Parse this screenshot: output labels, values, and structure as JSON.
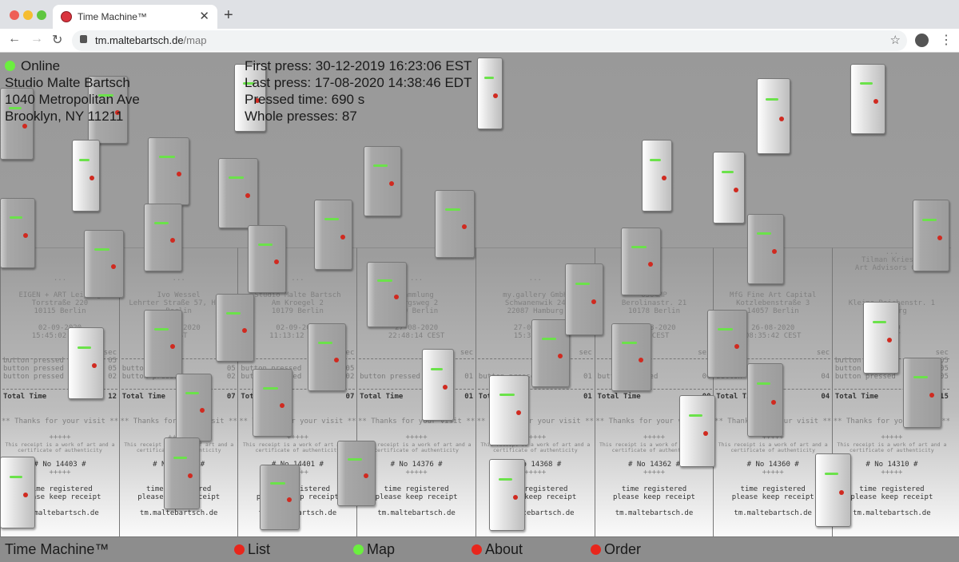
{
  "browser": {
    "tab_title": "Time Machine™",
    "url_host": "tm.maltebartsch.de",
    "url_path": "/map",
    "new_tab": "+",
    "close": "✕"
  },
  "status": {
    "label": "Online",
    "color": "#6bef3f",
    "studio": "Studio Malte Bartsch",
    "street": "1040 Metropolitan Ave",
    "city": "Brooklyn, NY 11211"
  },
  "stats": {
    "first_press": "First press: 30-12-2019 16:23:06 EST",
    "last_press": "Last press: 17-08-2020 14:38:46 EDT",
    "pressed_time": "Pressed time: 690 s",
    "whole_presses": "Whole presses: 87"
  },
  "receipt_common": {
    "ellipsis": "...",
    "sec": "sec",
    "row_label": "button pressed",
    "total_label": "Total Time",
    "thanks": "** Thanks for your visit **",
    "plus": "+++++",
    "art_line1": "This receipt is a work of art and a",
    "art_line2": "certificate of authenticity",
    "registered": "time registered",
    "keep": "please keep receipt",
    "site": "tm.maltebartsch.de"
  },
  "receipts": [
    {
      "name": "EIGEN + ART Leipzig",
      "addr": "Torstraße 220",
      "city": "10115 Berlin",
      "date": "02-09-2020",
      "time": "15:45:02 CEST",
      "rows": [
        "05",
        "05",
        "02"
      ],
      "total": "12",
      "no": "# No 14403 #"
    },
    {
      "name": "Ivo Wessel",
      "addr": "Lehrter Straße 57, Haus",
      "city": "Berlin",
      "date": "02-09-2020",
      "time": "CEST",
      "rows": [
        "05",
        "02"
      ],
      "total": "07",
      "no": "# No 14402 #"
    },
    {
      "name": "Studio Malte Bartsch",
      "addr": "Am Kroegel 2",
      "city": "10179 Berlin",
      "date": "02-09-2020",
      "time": "11:13:12 CEST",
      "rows": [
        "05",
        "02"
      ],
      "total": "07",
      "no": "# No 14401 #"
    },
    {
      "name": "Sammlung",
      "addr": "bergsweg 2",
      "city": "119 Berlin",
      "date": "27-08-2020",
      "time": "22:48:14 CEST",
      "rows": [
        "01"
      ],
      "total": "01",
      "no": "# No 14376 #"
    },
    {
      "name": "my.gallery GmbH",
      "addr": "Schwanenwik 24",
      "city": "22087 Hamburg",
      "date": "27-08-2020",
      "time": "15:31 CEST",
      "rows": [
        "01"
      ],
      "total": "01",
      "no": "# No 14368 #"
    },
    {
      "name": "0304MP",
      "addr": "Berolinastr. 21",
      "city": "10178 Berlin",
      "date": "26-08-2020",
      "time": "58 CEST",
      "rows": [
        "00"
      ],
      "total": "00",
      "no": "# No 14362 #"
    },
    {
      "name": "MfG Fine Art Capital",
      "addr": "Kotzlebenstraße 3",
      "city": "14057 Berlin",
      "date": "26-08-2020",
      "time": "08:35:42 CEST",
      "rows": [
        "04"
      ],
      "total": "04",
      "no": "# No 14360 #"
    },
    {
      "name": "Tilman Kriesel",
      "name2": "Art Advisors GmbH",
      "addr": "Kleine Reichenstr. 1",
      "city": "Hamburg",
      "date": "2020",
      "time": "CEST",
      "rows": [
        "05",
        "05",
        "05"
      ],
      "total": "15",
      "no": "# No 14310 #"
    }
  ],
  "footer": {
    "brand": "Time Machine™",
    "links": [
      {
        "label": "List",
        "color": "#e8261c"
      },
      {
        "label": "Map",
        "color": "#6bef3f"
      },
      {
        "label": "About",
        "color": "#e8261c"
      },
      {
        "label": "Order",
        "color": "#e8261c"
      }
    ]
  }
}
